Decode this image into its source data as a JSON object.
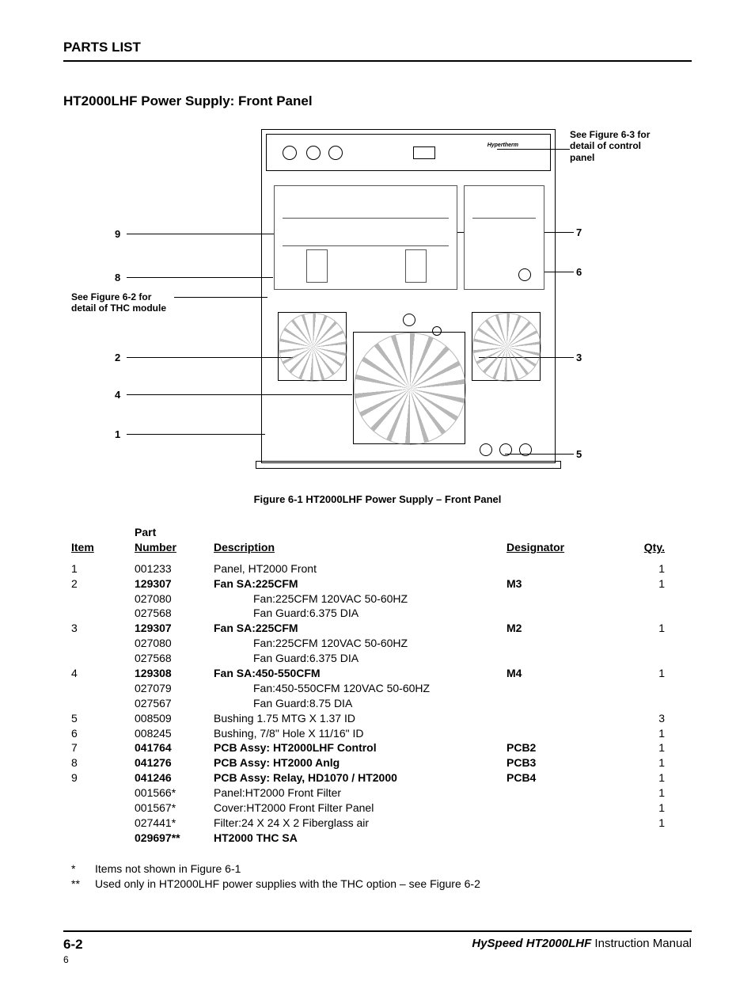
{
  "header": "PARTS LIST",
  "subtitle": "HT2000LHF Power Supply: Front Panel",
  "figure_note_right": "See Figure 6-3 for detail of control panel",
  "figure_note_left": "See Figure 6-2 for detail of THC module",
  "callouts": {
    "c1": "1",
    "c2": "2",
    "c3": "3",
    "c4": "4",
    "c5": "5",
    "c6": "6",
    "c7": "7",
    "c8": "8",
    "c9": "9"
  },
  "figure_caption": "Figure 6-1  HT2000LHF Power Supply – Front Panel",
  "table": {
    "headers": {
      "item": "Item",
      "part_top": "Part",
      "part": "Number",
      "desc": "Description",
      "desig": "Designator",
      "qty": "Qty."
    },
    "rows": [
      {
        "item": "1",
        "part": "001233",
        "desc": "Panel, HT2000 Front",
        "desig": "",
        "qty": "1",
        "bold": false,
        "indent": false
      },
      {
        "item": "2",
        "part": "129307",
        "desc": "Fan SA:225CFM",
        "desig": "M3",
        "qty": "1",
        "bold": true,
        "indent": false
      },
      {
        "item": "",
        "part": "027080",
        "desc": "Fan:225CFM 120VAC 50-60HZ",
        "desig": "",
        "qty": "",
        "bold": false,
        "indent": true
      },
      {
        "item": "",
        "part": "027568",
        "desc": "Fan Guard:6.375 DIA",
        "desig": "",
        "qty": "",
        "bold": false,
        "indent": true
      },
      {
        "item": "3",
        "part": "129307",
        "desc": "Fan SA:225CFM",
        "desig": "M2",
        "qty": "1",
        "bold": true,
        "indent": false
      },
      {
        "item": "",
        "part": "027080",
        "desc": "Fan:225CFM 120VAC 50-60HZ",
        "desig": "",
        "qty": "",
        "bold": false,
        "indent": true
      },
      {
        "item": "",
        "part": "027568",
        "desc": "Fan Guard:6.375 DIA",
        "desig": "",
        "qty": "",
        "bold": false,
        "indent": true
      },
      {
        "item": "4",
        "part": "129308",
        "desc": "Fan SA:450-550CFM",
        "desig": "M4",
        "qty": "1",
        "bold": true,
        "indent": false
      },
      {
        "item": "",
        "part": "027079",
        "desc": "Fan:450-550CFM 120VAC 50-60HZ",
        "desig": "",
        "qty": "",
        "bold": false,
        "indent": true
      },
      {
        "item": "",
        "part": "027567",
        "desc": "Fan Guard:8.75 DIA",
        "desig": "",
        "qty": "",
        "bold": false,
        "indent": true
      },
      {
        "item": "5",
        "part": "008509",
        "desc": "Bushing 1.75 MTG X 1.37 ID",
        "desig": "",
        "qty": "3",
        "bold": false,
        "indent": false
      },
      {
        "item": "6",
        "part": "008245",
        "desc": "Bushing, 7/8\" Hole X 11/16\" ID",
        "desig": "",
        "qty": "1",
        "bold": false,
        "indent": false
      },
      {
        "item": "7",
        "part": "041764",
        "desc": "PCB Assy: HT2000LHF Control",
        "desig": "PCB2",
        "qty": "1",
        "bold": true,
        "indent": false
      },
      {
        "item": "8",
        "part": "041276",
        "desc": "PCB Assy: HT2000 Anlg",
        "desig": "PCB3",
        "qty": "1",
        "bold": true,
        "indent": false
      },
      {
        "item": "9",
        "part": "041246",
        "desc": "PCB Assy: Relay, HD1070 / HT2000",
        "desig": "PCB4",
        "qty": "1",
        "bold": true,
        "indent": false
      },
      {
        "item": "",
        "part": "001566*",
        "desc": "Panel:HT2000 Front Filter",
        "desig": "",
        "qty": "1",
        "bold": false,
        "indent": false
      },
      {
        "item": "",
        "part": "001567*",
        "desc": "Cover:HT2000 Front Filter Panel",
        "desig": "",
        "qty": "1",
        "bold": false,
        "indent": false
      },
      {
        "item": "",
        "part": "027441*",
        "desc": "Filter:24 X 24 X 2 Fiberglass air",
        "desig": "",
        "qty": "1",
        "bold": false,
        "indent": false
      },
      {
        "item": "",
        "part": "029697**",
        "desc": "HT2000 THC SA",
        "desig": "",
        "qty": "",
        "bold": true,
        "indent": false
      }
    ]
  },
  "footnotes": [
    {
      "star": "*",
      "text": "Items not shown in Figure 6-1"
    },
    {
      "star": "**",
      "text": "Used only in HT2000LHF power supplies with the THC option – see Figure 6-2"
    }
  ],
  "footer": {
    "page": "6-2",
    "brand": "HySpeed HT2000LHF",
    "manual": " Instruction Manual",
    "sheet": "6"
  }
}
